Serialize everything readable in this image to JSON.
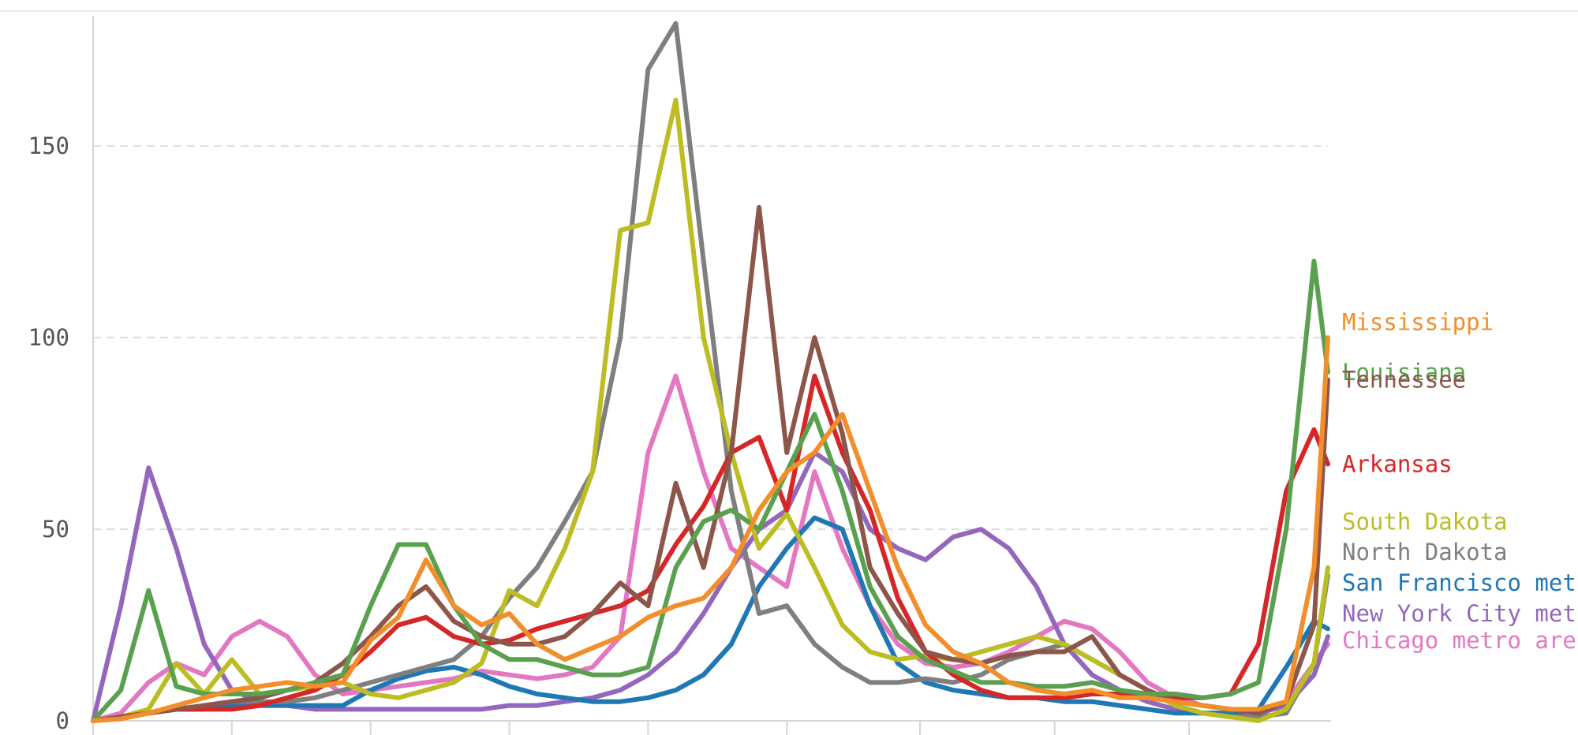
{
  "chart_data": {
    "type": "line",
    "title": "",
    "xlabel": "",
    "ylabel": "",
    "ylim": [
      0,
      184
    ],
    "x": [
      0,
      2,
      4,
      6,
      8,
      10,
      12,
      14,
      16,
      18,
      20,
      22,
      24,
      26,
      28,
      30,
      32,
      34,
      36,
      38,
      40,
      42,
      44,
      46,
      48,
      50,
      52,
      54,
      56,
      58,
      60,
      62,
      64,
      66,
      68,
      70,
      72,
      74,
      76,
      78,
      80,
      82,
      84,
      86,
      88,
      89
    ],
    "xlim": [
      0,
      89
    ],
    "grid": true,
    "yticks": [
      {
        "value": 0,
        "label": "0"
      },
      {
        "value": 50,
        "label": "50"
      },
      {
        "value": 100,
        "label": "100"
      },
      {
        "value": 150,
        "label": "150"
      }
    ],
    "x_tick_positions": [
      10,
      20,
      30,
      40,
      50,
      59.6,
      69.3,
      79
    ],
    "legend": "right-end labels",
    "series": [
      {
        "name": "Mississippi",
        "color": "#f28e2b",
        "label_value": 104,
        "values": [
          0,
          0.5,
          2,
          4,
          6,
          8,
          9,
          10,
          9,
          10,
          21,
          27,
          42,
          30,
          25,
          28,
          20,
          16,
          19,
          22,
          27,
          30,
          32,
          40,
          55,
          65,
          70,
          80,
          60,
          40,
          25,
          18,
          15,
          10,
          8,
          7,
          8,
          6,
          6,
          5,
          4,
          3,
          3,
          5,
          40,
          100
        ]
      },
      {
        "name": "Louisiana",
        "color": "#59a14f",
        "label_value": 91,
        "values": [
          0,
          8,
          34,
          9,
          7,
          7,
          7,
          8,
          10,
          12,
          30,
          46,
          46,
          30,
          20,
          16,
          16,
          14,
          12,
          12,
          14,
          40,
          52,
          55,
          50,
          65,
          80,
          60,
          35,
          22,
          16,
          13,
          10,
          10,
          9,
          9,
          10,
          8,
          7,
          7,
          6,
          7,
          10,
          50,
          120,
          91
        ]
      },
      {
        "name": "Tennessee",
        "color": "#8c564b",
        "label_value": 89,
        "values": [
          0,
          1,
          2,
          3,
          4,
          5,
          6,
          8,
          10,
          15,
          22,
          30,
          35,
          26,
          22,
          20,
          20,
          22,
          28,
          36,
          30,
          62,
          40,
          70,
          134,
          70,
          100,
          75,
          40,
          28,
          18,
          16,
          15,
          17,
          18,
          18,
          22,
          12,
          8,
          5,
          4,
          3,
          2,
          5,
          25,
          89
        ]
      },
      {
        "name": "Arkansas",
        "color": "#d62728",
        "label_value": 67,
        "values": [
          0,
          1,
          2,
          3,
          3,
          3,
          4,
          6,
          8,
          12,
          18,
          25,
          27,
          22,
          20,
          21,
          24,
          26,
          28,
          30,
          34,
          46,
          56,
          70,
          74,
          55,
          90,
          70,
          55,
          32,
          18,
          12,
          8,
          6,
          6,
          6,
          7,
          7,
          6,
          6,
          6,
          7,
          20,
          60,
          76,
          67
        ]
      },
      {
        "name": "South Dakota",
        "color": "#bcbd22",
        "label_value": 52,
        "values": [
          0,
          1,
          3,
          15,
          7,
          16,
          7,
          8,
          9,
          10,
          7,
          6,
          8,
          10,
          15,
          34,
          30,
          45,
          65,
          128,
          130,
          162,
          100,
          70,
          45,
          54,
          40,
          25,
          18,
          16,
          17,
          16,
          18,
          20,
          22,
          20,
          16,
          12,
          8,
          4,
          2,
          1,
          0,
          3,
          15,
          40
        ]
      },
      {
        "name": "North Dakota",
        "color": "#7f7f7f",
        "label_value": 44,
        "values": [
          0,
          1,
          2,
          3,
          4,
          5,
          5,
          5,
          6,
          8,
          10,
          12,
          14,
          16,
          22,
          32,
          40,
          52,
          65,
          100,
          170,
          182,
          120,
          60,
          28,
          30,
          20,
          14,
          10,
          10,
          11,
          10,
          12,
          16,
          18,
          20,
          16,
          12,
          8,
          4,
          2,
          1,
          1,
          2,
          15,
          38
        ]
      },
      {
        "name": "San Francisco metro area",
        "label": "San Francisco met",
        "color": "#1f77b4",
        "label_value": 36,
        "values": [
          0,
          1,
          2,
          3,
          3,
          4,
          4,
          4,
          4,
          4,
          8,
          11,
          13,
          14,
          12,
          9,
          7,
          6,
          5,
          5,
          6,
          8,
          12,
          20,
          35,
          45,
          53,
          50,
          30,
          15,
          10,
          8,
          7,
          6,
          6,
          5,
          5,
          4,
          3,
          2,
          2,
          2,
          3,
          14,
          26,
          24
        ]
      },
      {
        "name": "New York City metro area",
        "label": "New York City met",
        "color": "#9467bd",
        "label_value": 28,
        "values": [
          0,
          30,
          66,
          45,
          20,
          8,
          5,
          4,
          3,
          3,
          3,
          3,
          3,
          3,
          3,
          4,
          4,
          5,
          6,
          8,
          12,
          18,
          28,
          40,
          50,
          55,
          70,
          65,
          50,
          45,
          42,
          48,
          50,
          45,
          35,
          20,
          12,
          8,
          5,
          3,
          2,
          2,
          2,
          4,
          12,
          22
        ]
      },
      {
        "name": "Chicago metro area",
        "label": "Chicago metro are",
        "color": "#e377c2",
        "label_value": 21,
        "values": [
          0,
          2,
          10,
          15,
          12,
          22,
          26,
          22,
          12,
          7,
          8,
          9,
          10,
          11,
          13,
          12,
          11,
          12,
          14,
          22,
          70,
          90,
          65,
          45,
          40,
          35,
          65,
          45,
          30,
          20,
          15,
          14,
          15,
          18,
          22,
          26,
          24,
          18,
          10,
          6,
          4,
          3,
          2,
          5,
          15,
          20
        ]
      }
    ]
  }
}
